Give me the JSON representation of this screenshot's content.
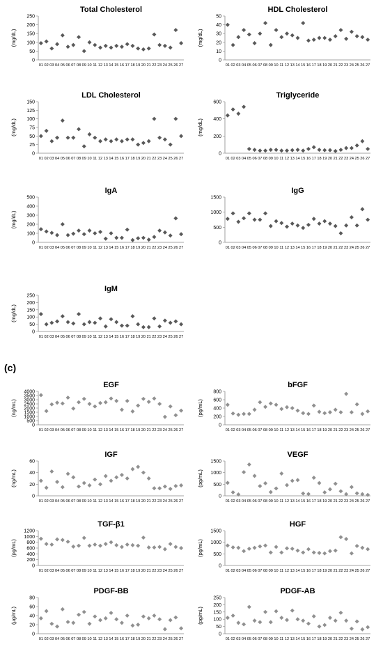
{
  "section_label": "(c)",
  "x_categories": [
    "01",
    "02",
    "03",
    "04",
    "05",
    "06",
    "07",
    "08",
    "09",
    "10",
    "11",
    "12",
    "13",
    "14",
    "15",
    "16",
    "17",
    "18",
    "19",
    "20",
    "21",
    "22",
    "23",
    "24",
    "25",
    "26",
    "27"
  ],
  "chart_data": [
    {
      "type": "scatter",
      "title": "Total Cholesterol",
      "ylabel": "(mg/dL)",
      "ylim": [
        0,
        250
      ],
      "yticks": [
        0,
        50,
        100,
        150,
        200,
        250
      ],
      "color": "#595959",
      "values": [
        95,
        105,
        65,
        90,
        140,
        75,
        85,
        130,
        50,
        100,
        85,
        70,
        80,
        70,
        80,
        75,
        90,
        80,
        65,
        60,
        65,
        145,
        85,
        80,
        70,
        170,
        95
      ]
    },
    {
      "type": "scatter",
      "title": "HDL Cholesterol",
      "ylabel": "(mg/dL)",
      "ylim": [
        0,
        50
      ],
      "yticks": [
        0,
        10,
        20,
        30,
        40,
        50
      ],
      "color": "#595959",
      "values": [
        40,
        17,
        26,
        34,
        29,
        19,
        30,
        42,
        17,
        34,
        26,
        30,
        28,
        25,
        42,
        22,
        23,
        25,
        25,
        23,
        27,
        34,
        24,
        32,
        27,
        26,
        23
      ]
    },
    {
      "type": "scatter",
      "title": "LDL Cholesterol",
      "ylabel": "(mg/dL)",
      "ylim": [
        0,
        150
      ],
      "yticks": [
        0,
        25,
        50,
        75,
        100,
        125,
        150
      ],
      "color": "#595959",
      "values": [
        50,
        65,
        35,
        45,
        95,
        45,
        45,
        70,
        20,
        55,
        45,
        35,
        40,
        35,
        40,
        35,
        40,
        40,
        25,
        30,
        35,
        100,
        45,
        40,
        25,
        100,
        50
      ]
    },
    {
      "type": "scatter",
      "title": "Triglyceride",
      "ylabel": "(mg/dL)",
      "ylim": [
        0,
        600
      ],
      "yticks": [
        0,
        200,
        400,
        600
      ],
      "color": "#595959",
      "values": [
        440,
        510,
        460,
        540,
        50,
        40,
        30,
        30,
        40,
        40,
        30,
        30,
        35,
        40,
        30,
        50,
        70,
        40,
        35,
        35,
        25,
        40,
        60,
        60,
        90,
        140,
        50
      ]
    },
    {
      "type": "scatter",
      "title": "IgA",
      "ylabel": "(mg/dL)",
      "ylim": [
        0,
        500
      ],
      "yticks": [
        0,
        100,
        200,
        300,
        400,
        500
      ],
      "color": "#595959",
      "values": [
        145,
        120,
        105,
        80,
        200,
        80,
        95,
        130,
        90,
        130,
        100,
        115,
        40,
        100,
        50,
        50,
        140,
        25,
        45,
        50,
        30,
        60,
        130,
        110,
        75,
        265,
        90
      ]
    },
    {
      "type": "scatter",
      "title": "IgG",
      "ylabel": "",
      "ylim": [
        0,
        1500
      ],
      "yticks": [
        0,
        500,
        1000,
        1500
      ],
      "color": "#595959",
      "values": [
        780,
        960,
        680,
        800,
        960,
        750,
        750,
        960,
        540,
        700,
        640,
        520,
        620,
        560,
        480,
        580,
        780,
        620,
        700,
        620,
        540,
        300,
        560,
        830,
        560,
        1100,
        750
      ]
    },
    {
      "type": "scatter",
      "title": "IgM",
      "ylabel": "(mg/dL)",
      "ylim": [
        0,
        250
      ],
      "yticks": [
        0,
        50,
        100,
        150,
        200,
        250
      ],
      "color": "#595959",
      "values": [
        120,
        50,
        60,
        70,
        105,
        65,
        55,
        120,
        50,
        65,
        60,
        90,
        35,
        85,
        65,
        40,
        40,
        105,
        50,
        30,
        30,
        90,
        35,
        75,
        60,
        70,
        50
      ]
    },
    {
      "type": "scatter",
      "title": "EGF",
      "ylabel": "(ng/mL)",
      "ylim": [
        0,
        4000
      ],
      "yticks": [
        0,
        500,
        1000,
        1500,
        2000,
        2500,
        3000,
        3500,
        4000
      ],
      "color": "#909090",
      "values": [
        3550,
        1650,
        2450,
        2650,
        2550,
        3250,
        1950,
        2700,
        3100,
        2500,
        2200,
        2600,
        2700,
        3150,
        2850,
        1800,
        2850,
        1600,
        2300,
        3100,
        2750,
        3150,
        2500,
        950,
        2200,
        1150,
        1700
      ]
    },
    {
      "type": "scatter",
      "title": "bFGF",
      "ylabel": "(pg/mL)",
      "ylim": [
        0,
        800
      ],
      "yticks": [
        0,
        200,
        400,
        600,
        800
      ],
      "color": "#909090",
      "values": [
        480,
        270,
        240,
        260,
        260,
        360,
        540,
        430,
        510,
        480,
        380,
        420,
        400,
        340,
        280,
        260,
        460,
        310,
        280,
        300,
        360,
        300,
        740,
        300,
        490,
        260,
        320
      ]
    },
    {
      "type": "scatter",
      "title": "IGF",
      "ylabel": "(ng/mL)",
      "ylim": [
        0,
        60
      ],
      "yticks": [
        0,
        20,
        40,
        60
      ],
      "color": "#909090",
      "values": [
        26,
        14,
        42,
        24,
        15,
        38,
        32,
        16,
        22,
        18,
        28,
        20,
        34,
        26,
        32,
        36,
        30,
        46,
        50,
        40,
        30,
        13,
        13,
        16,
        12,
        17,
        18
      ]
    },
    {
      "type": "scatter",
      "title": "VEGF",
      "ylabel": "(pg/mL)",
      "ylim": [
        0,
        1500
      ],
      "yticks": [
        0,
        500,
        1000,
        1500
      ],
      "color": "#909090",
      "values": [
        560,
        150,
        60,
        1020,
        1350,
        860,
        420,
        540,
        160,
        320,
        960,
        460,
        650,
        680,
        100,
        80,
        780,
        550,
        150,
        280,
        520,
        200,
        70,
        380,
        110,
        70,
        40
      ]
    },
    {
      "type": "scatter",
      "title": "TGF-β1",
      "ylabel": "(pg/mL)",
      "ylim": [
        0,
        1200
      ],
      "yticks": [
        0,
        200,
        400,
        600,
        800,
        1000,
        1200
      ],
      "color": "#909090",
      "values": [
        920,
        740,
        720,
        900,
        880,
        820,
        650,
        680,
        950,
        680,
        720,
        680,
        740,
        800,
        700,
        640,
        720,
        700,
        680,
        960,
        620,
        620,
        640,
        560,
        740,
        640,
        600
      ]
    },
    {
      "type": "scatter",
      "title": "HGF",
      "ylabel": "(pg/mL)",
      "ylim": [
        0,
        1500
      ],
      "yticks": [
        0,
        500,
        1000,
        1500
      ],
      "color": "#909090",
      "values": [
        860,
        780,
        760,
        620,
        720,
        760,
        820,
        860,
        560,
        800,
        560,
        740,
        720,
        640,
        560,
        700,
        560,
        540,
        520,
        620,
        640,
        1220,
        1140,
        520,
        840,
        760,
        700
      ]
    },
    {
      "type": "scatter",
      "title": "PDGF-BB",
      "ylabel": "(μg/mL)",
      "ylim": [
        0,
        80
      ],
      "yticks": [
        0,
        20,
        40,
        60,
        80
      ],
      "color": "#909090",
      "values": [
        34,
        50,
        22,
        16,
        54,
        26,
        24,
        42,
        48,
        22,
        38,
        30,
        34,
        46,
        32,
        24,
        40,
        18,
        20,
        38,
        34,
        40,
        32,
        10,
        30,
        36,
        12
      ]
    },
    {
      "type": "scatter",
      "title": "PDGF-AB",
      "ylabel": "(pg/mL)",
      "ylim": [
        0,
        250
      ],
      "yticks": [
        0,
        50,
        100,
        150,
        200,
        250
      ],
      "color": "#909090",
      "values": [
        110,
        125,
        75,
        65,
        185,
        90,
        80,
        150,
        80,
        155,
        110,
        95,
        160,
        100,
        90,
        70,
        120,
        50,
        60,
        110,
        90,
        145,
        90,
        35,
        85,
        30,
        45
      ]
    }
  ]
}
